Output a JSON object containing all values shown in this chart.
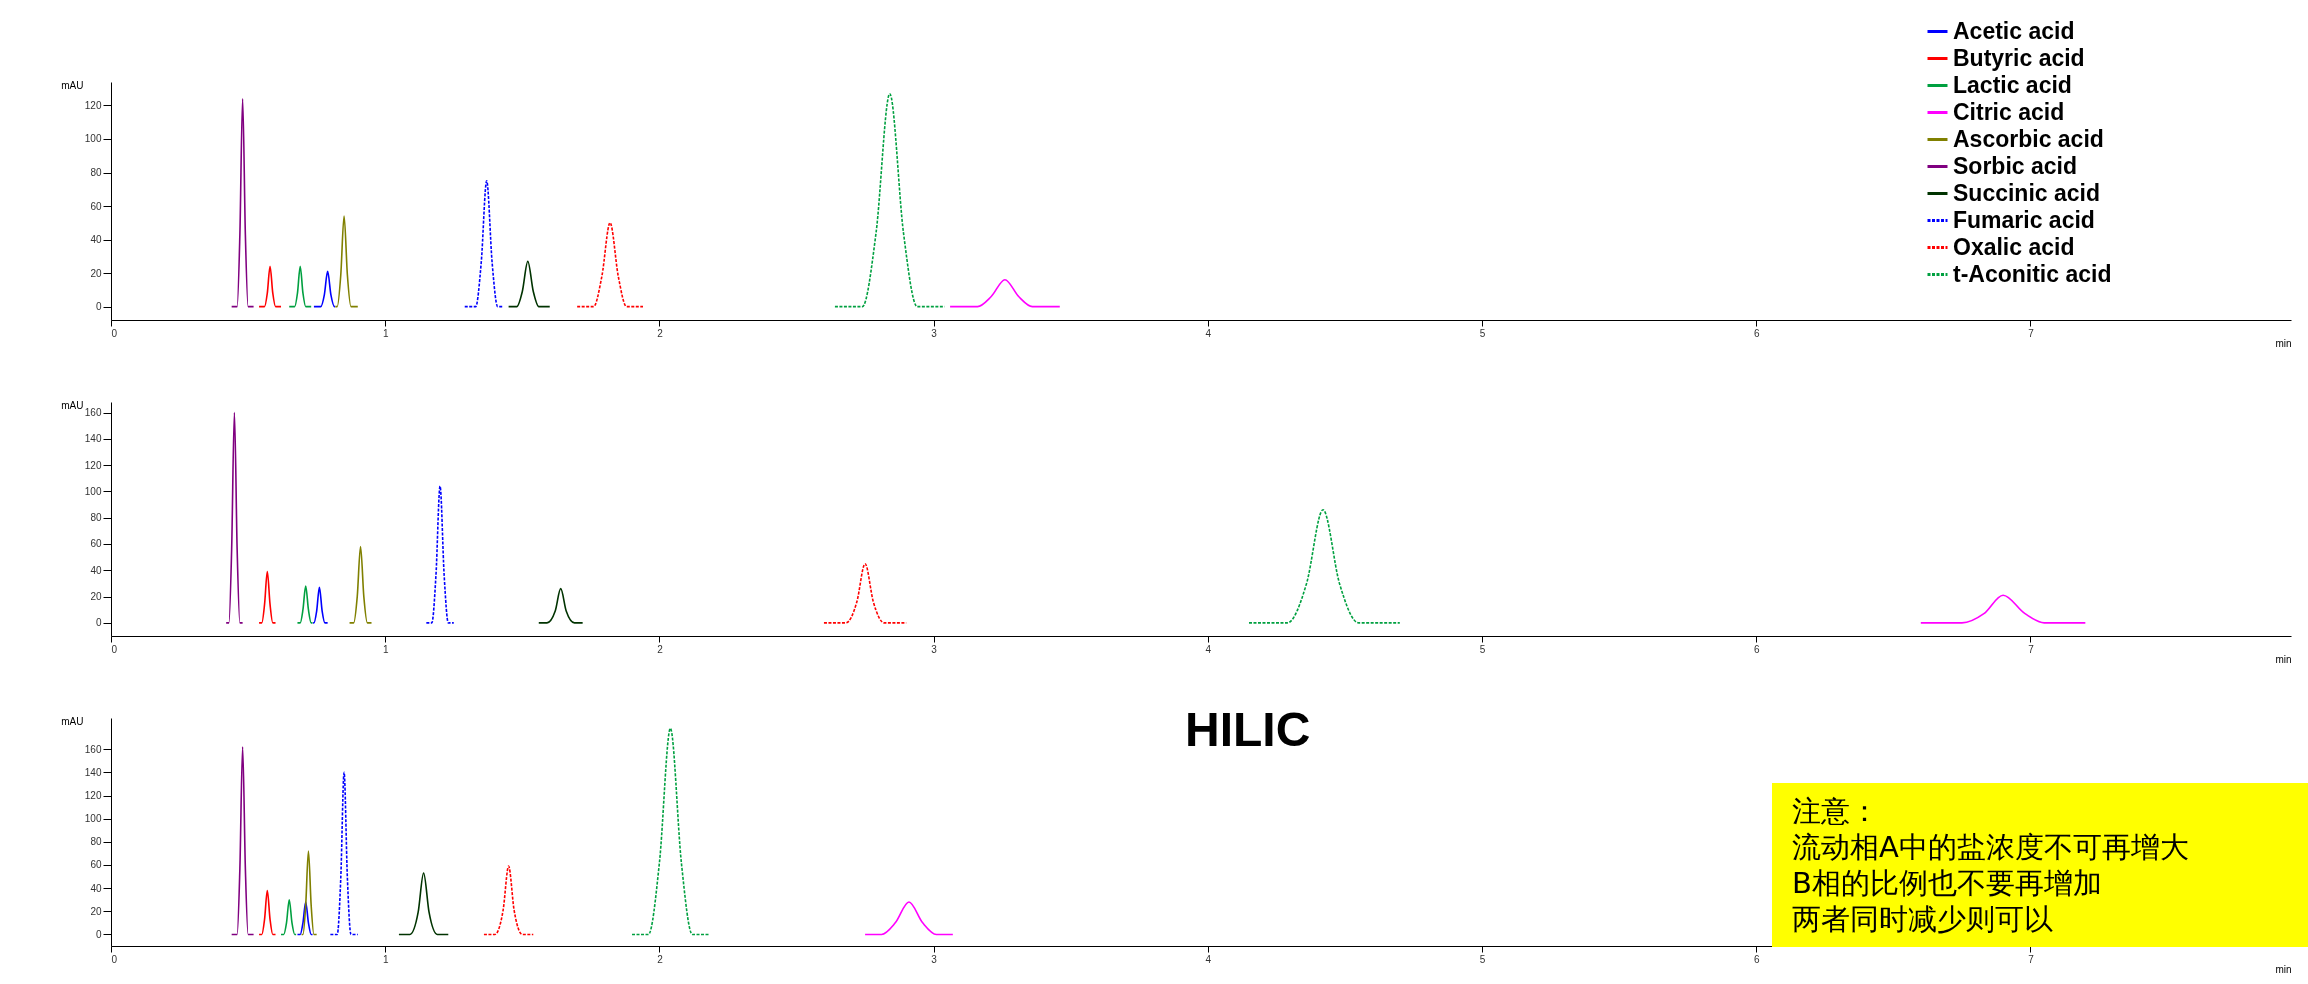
{
  "chart_data": [
    {
      "type": "line",
      "xlabel": "min",
      "ylabel": "mAU",
      "xlim": [
        0,
        7.95
      ],
      "xticks": [
        0,
        1,
        2,
        3,
        4,
        5,
        6,
        7
      ],
      "ylim": [
        -8,
        134
      ],
      "yticks": [
        0,
        20,
        40,
        60,
        80,
        100,
        120
      ],
      "grid": false,
      "legend": "top right",
      "series": [
        {
          "name": "Acetic acid",
          "color": "#0000ff",
          "line_style": "solid",
          "x": [
            0.74,
            0.765,
            0.778,
            0.79,
            0.802,
            0.815,
            0.817
          ],
          "values": [
            0,
            0,
            7,
            21,
            7,
            0,
            0
          ]
        },
        {
          "name": "Butyric acid",
          "color": "#ff0000",
          "line_style": "solid",
          "x": [
            0.54,
            0.56,
            0.57,
            0.58,
            0.59,
            0.6,
            0.62
          ],
          "values": [
            0,
            0,
            8,
            24,
            8,
            0,
            0
          ]
        },
        {
          "name": "Lactic acid",
          "color": "#00a040",
          "line_style": "solid",
          "x": [
            0.65,
            0.67,
            0.68,
            0.69,
            0.7,
            0.71,
            0.73
          ],
          "values": [
            0,
            0,
            8,
            24,
            8,
            0,
            0
          ]
        },
        {
          "name": "Citric acid",
          "color": "#ff00ff",
          "line_style": "solid",
          "x": [
            3.06,
            3.16,
            3.21,
            3.26,
            3.31,
            3.36,
            3.46
          ],
          "values": [
            0,
            0,
            6,
            16,
            6,
            0,
            0
          ]
        },
        {
          "name": "Ascorbic acid",
          "color": "#808000",
          "line_style": "solid",
          "x": [
            0.818,
            0.825,
            0.838,
            0.85,
            0.862,
            0.875,
            0.9
          ],
          "values": [
            0,
            0,
            19,
            54,
            19,
            0,
            0
          ]
        },
        {
          "name": "Sorbic acid",
          "color": "#800080",
          "line_style": "solid",
          "x": [
            0.44,
            0.46,
            0.47,
            0.48,
            0.49,
            0.5,
            0.52
          ],
          "values": [
            0,
            0,
            43,
            124,
            43,
            0,
            0
          ]
        },
        {
          "name": "Succinic acid",
          "color": "#003300",
          "line_style": "solid",
          "x": [
            1.45,
            1.48,
            1.5,
            1.52,
            1.54,
            1.56,
            1.6
          ],
          "values": [
            0,
            0,
            9,
            27,
            9,
            0,
            0
          ]
        },
        {
          "name": "Fumaric acid",
          "color": "#0000ff",
          "line_style": "dashed",
          "x": [
            1.29,
            1.33,
            1.35,
            1.37,
            1.39,
            1.41,
            1.43
          ],
          "values": [
            0,
            0,
            26,
            75,
            26,
            0,
            0
          ]
        },
        {
          "name": "Oxalic acid",
          "color": "#ff0000",
          "line_style": "dashed",
          "x": [
            1.7,
            1.76,
            1.79,
            1.82,
            1.85,
            1.88,
            1.94
          ],
          "values": [
            0,
            0,
            18,
            50,
            18,
            0,
            0
          ]
        },
        {
          "name": "t-Aconitic acid",
          "color": "#00a040",
          "line_style": "dashed",
          "x": [
            2.64,
            2.74,
            2.79,
            2.84,
            2.89,
            2.94,
            3.04
          ],
          "values": [
            0,
            0,
            44,
            127,
            44,
            0,
            0
          ]
        }
      ]
    },
    {
      "type": "line",
      "xlabel": "min",
      "ylabel": "mAU",
      "xlim": [
        0,
        7.95
      ],
      "xticks": [
        0,
        1,
        2,
        3,
        4,
        5,
        6,
        7
      ],
      "ylim": [
        -10,
        168
      ],
      "yticks": [
        0,
        20,
        40,
        60,
        80,
        100,
        120,
        140,
        160
      ],
      "grid": false,
      "series": [
        {
          "color": "#0000ff",
          "line_style": "solid",
          "x": [
            0.737,
            0.74,
            0.75,
            0.76,
            0.77,
            0.78,
            0.79
          ],
          "values": [
            0,
            0,
            9,
            27,
            9,
            0,
            0
          ]
        },
        {
          "color": "#ff0000",
          "line_style": "solid",
          "x": [
            0.54,
            0.55,
            0.56,
            0.57,
            0.58,
            0.59,
            0.6
          ],
          "values": [
            0,
            0,
            14,
            39,
            14,
            0,
            0
          ]
        },
        {
          "color": "#00a040",
          "line_style": "solid",
          "x": [
            0.68,
            0.69,
            0.7,
            0.71,
            0.72,
            0.73,
            0.735
          ],
          "values": [
            0,
            0,
            10,
            28,
            10,
            0,
            0
          ]
        },
        {
          "color": "#ff00ff",
          "line_style": "solid",
          "x": [
            6.6,
            6.75,
            6.83,
            6.9,
            6.98,
            7.05,
            7.2
          ],
          "values": [
            0,
            0,
            7,
            21,
            7,
            0,
            0
          ]
        },
        {
          "color": "#808000",
          "line_style": "solid",
          "x": [
            0.87,
            0.885,
            0.898,
            0.91,
            0.922,
            0.935,
            0.95
          ],
          "values": [
            0,
            0,
            20,
            58,
            20,
            0,
            0
          ]
        },
        {
          "color": "#800080",
          "line_style": "solid",
          "x": [
            0.42,
            0.43,
            0.44,
            0.45,
            0.46,
            0.47,
            0.48
          ],
          "values": [
            0,
            0,
            56,
            160,
            56,
            0,
            0
          ]
        },
        {
          "color": "#003300",
          "line_style": "solid",
          "x": [
            1.56,
            1.59,
            1.62,
            1.64,
            1.66,
            1.69,
            1.72
          ],
          "values": [
            0,
            0,
            9,
            26,
            9,
            0,
            0
          ]
        },
        {
          "color": "#0000ff",
          "line_style": "dashed",
          "x": [
            1.15,
            1.17,
            1.185,
            1.2,
            1.215,
            1.23,
            1.25
          ],
          "values": [
            0,
            0,
            36,
            104,
            36,
            0,
            0
          ]
        },
        {
          "color": "#ff0000",
          "line_style": "dashed",
          "x": [
            2.6,
            2.68,
            2.72,
            2.75,
            2.78,
            2.82,
            2.9
          ],
          "values": [
            0,
            0,
            16,
            45,
            16,
            0,
            0
          ]
        },
        {
          "color": "#00a040",
          "line_style": "dashed",
          "x": [
            4.15,
            4.29,
            4.36,
            4.42,
            4.48,
            4.55,
            4.7
          ],
          "values": [
            0,
            0,
            30,
            86,
            30,
            0,
            0
          ]
        }
      ]
    },
    {
      "type": "line",
      "title": "HILIC",
      "xlabel": "min",
      "ylabel": "mAU",
      "xlim": [
        0,
        7.95
      ],
      "xticks": [
        0,
        1,
        2,
        3,
        4,
        5,
        6,
        7
      ],
      "ylim": [
        -10,
        187
      ],
      "yticks": [
        0,
        20,
        40,
        60,
        80,
        100,
        120,
        140,
        160
      ],
      "grid": false,
      "annotations": [
        "注意：",
        "流动相A中的盐浓度不可再增大",
        "B相的比例也不要再增加",
        "两者同时减少则可以"
      ],
      "series": [
        {
          "color": "#0000ff",
          "line_style": "solid",
          "x": [
            0.68,
            0.69,
            0.7,
            0.71,
            0.72,
            0.73,
            0.735
          ],
          "values": [
            0,
            0,
            10,
            28,
            10,
            0,
            0
          ]
        },
        {
          "color": "#ff0000",
          "line_style": "solid",
          "x": [
            0.54,
            0.55,
            0.56,
            0.57,
            0.58,
            0.59,
            0.6
          ],
          "values": [
            0,
            0,
            13,
            38,
            13,
            0,
            0
          ]
        },
        {
          "color": "#00a040",
          "line_style": "solid",
          "x": [
            0.62,
            0.63,
            0.64,
            0.65,
            0.66,
            0.67,
            0.675
          ],
          "values": [
            0,
            0,
            10,
            30,
            10,
            0,
            0
          ]
        },
        {
          "color": "#ff00ff",
          "line_style": "solid",
          "x": [
            2.75,
            2.81,
            2.86,
            2.91,
            2.96,
            3.01,
            3.07
          ],
          "values": [
            0,
            0,
            10,
            28,
            10,
            0,
            0
          ]
        },
        {
          "color": "#808000",
          "line_style": "solid",
          "x": [
            0.695,
            0.7,
            0.71,
            0.72,
            0.73,
            0.74,
            0.75
          ],
          "values": [
            0,
            0,
            25,
            72,
            25,
            0,
            0
          ]
        },
        {
          "color": "#800080",
          "line_style": "solid",
          "x": [
            0.44,
            0.46,
            0.47,
            0.48,
            0.49,
            0.5,
            0.52
          ],
          "values": [
            0,
            0,
            57,
            162,
            57,
            0,
            0
          ]
        },
        {
          "color": "#003300",
          "line_style": "solid",
          "x": [
            1.05,
            1.09,
            1.12,
            1.14,
            1.16,
            1.19,
            1.23
          ],
          "values": [
            0,
            0,
            19,
            53,
            19,
            0,
            0
          ]
        },
        {
          "color": "#0000ff",
          "line_style": "dashed",
          "x": [
            0.8,
            0.825,
            0.838,
            0.85,
            0.862,
            0.875,
            0.9
          ],
          "values": [
            0,
            0,
            49,
            140,
            49,
            0,
            0
          ]
        },
        {
          "color": "#ff0000",
          "line_style": "dashed",
          "x": [
            1.36,
            1.4,
            1.43,
            1.45,
            1.47,
            1.5,
            1.54
          ],
          "values": [
            0,
            0,
            21,
            59,
            21,
            0,
            0
          ]
        },
        {
          "color": "#00a040",
          "line_style": "dashed",
          "x": [
            1.9,
            1.96,
            2,
            2.04,
            2.08,
            2.12,
            2.18
          ],
          "values": [
            0,
            0,
            62,
            178,
            62,
            0,
            0
          ]
        }
      ]
    }
  ]
}
